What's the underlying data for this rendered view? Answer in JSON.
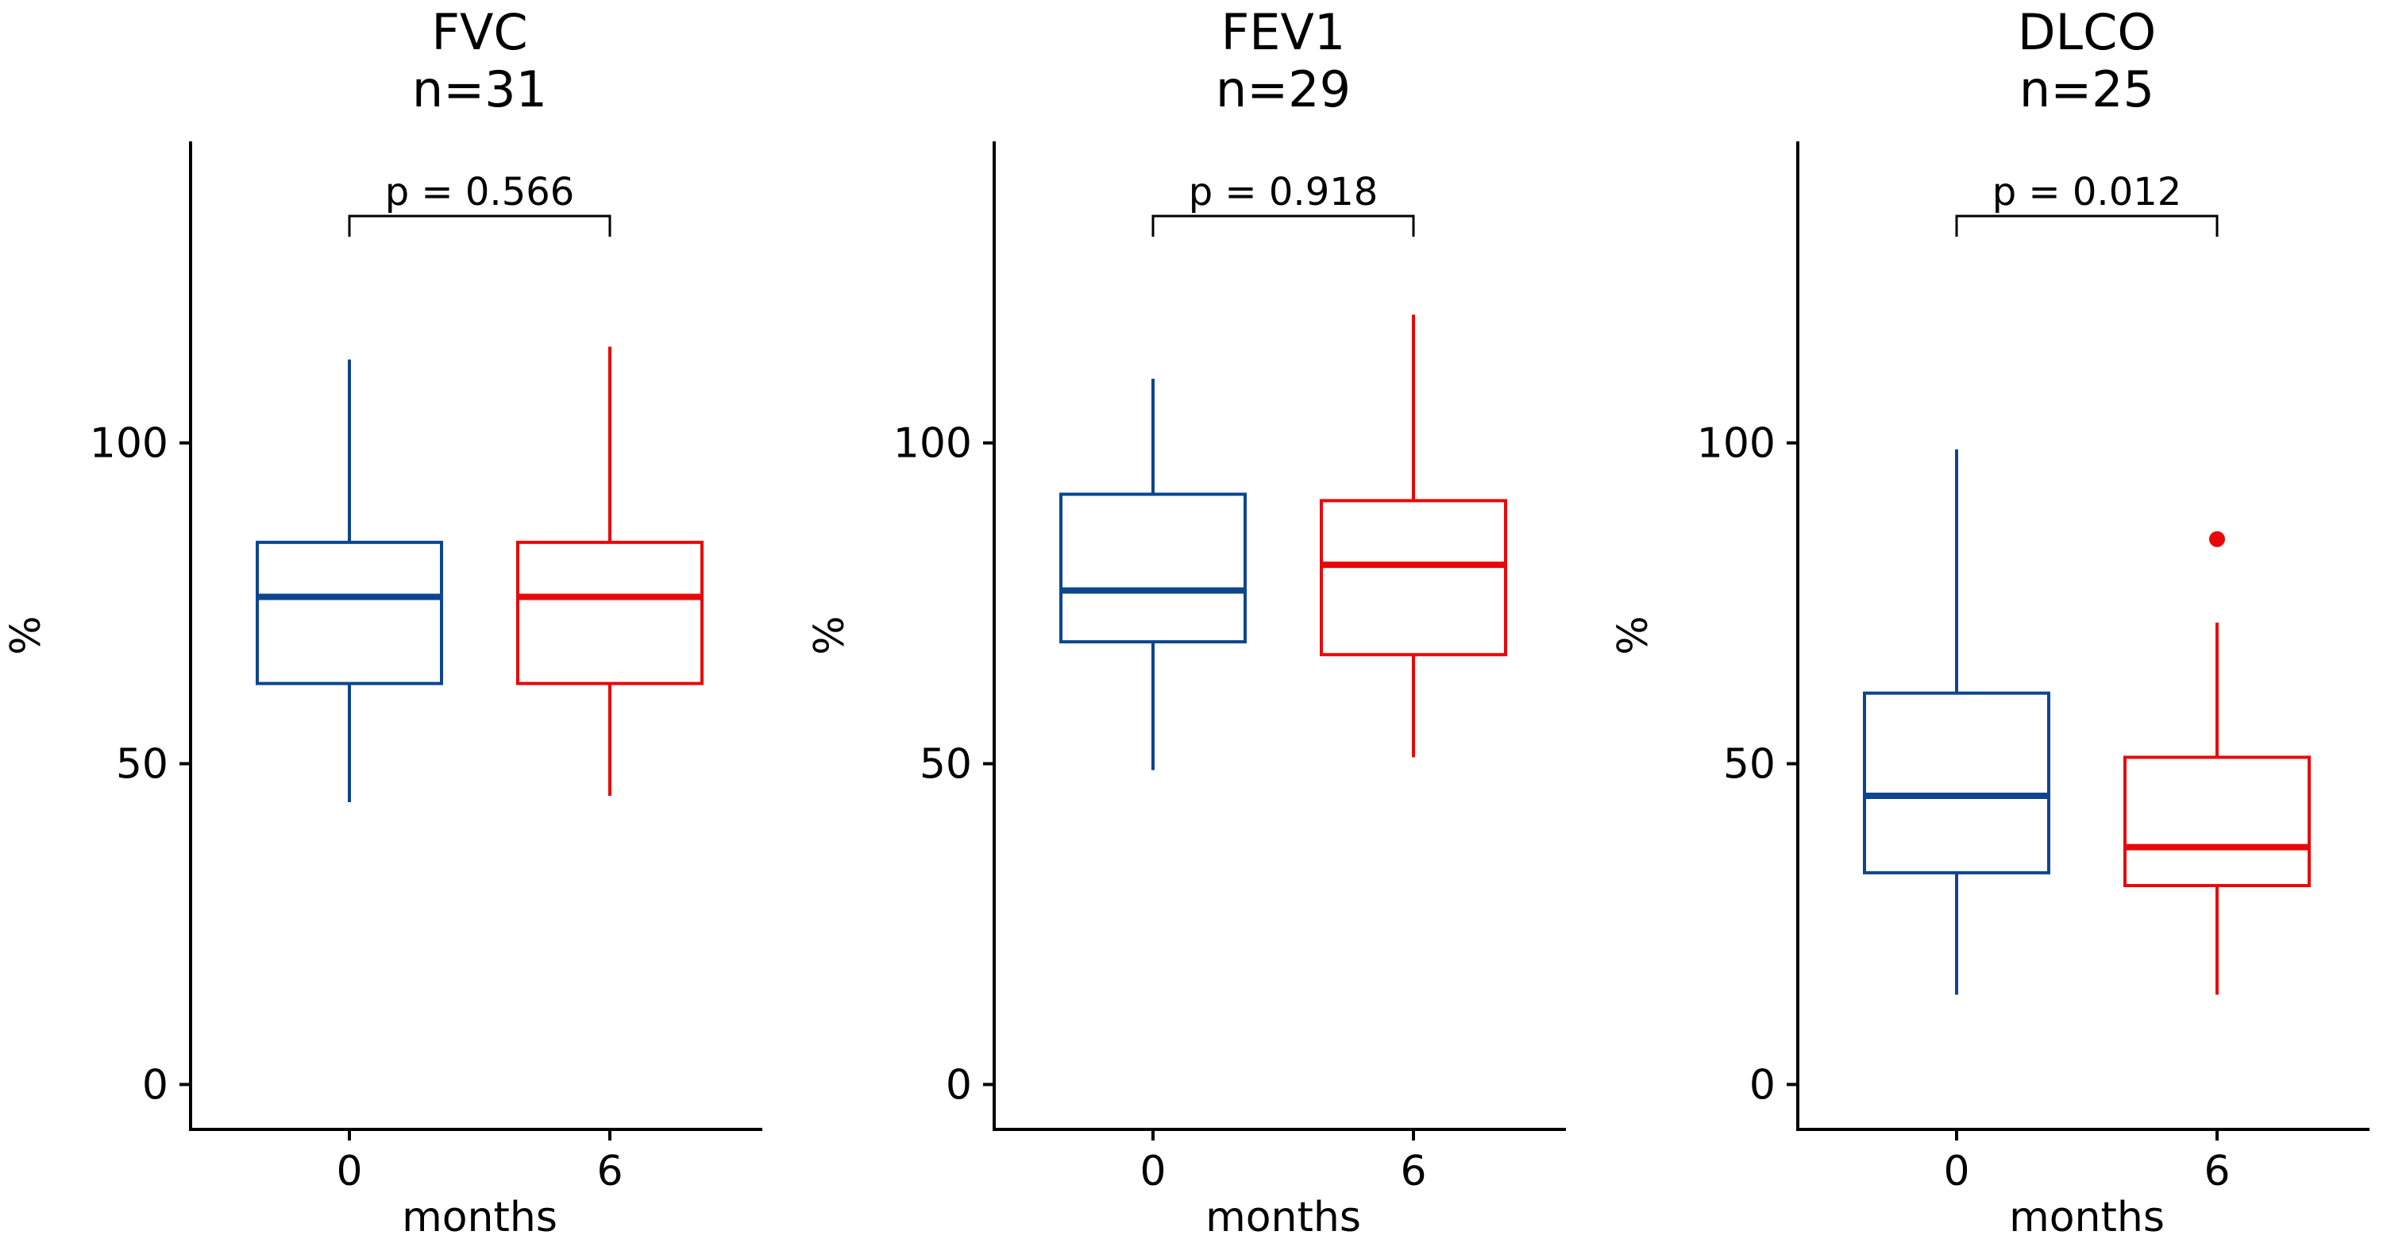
{
  "chart_data": [
    {
      "type": "boxplot",
      "title": "FVC",
      "subtitle": "n=31",
      "xlabel": "months",
      "ylabel": "%",
      "categories": [
        "0",
        "6"
      ],
      "ylim": [
        -7,
        147
      ],
      "yticks": [
        0,
        50,
        100
      ],
      "ytick_labels": [
        "0",
        "50",
        "100"
      ],
      "pvalue_label": "p = 0.566",
      "boxes": [
        {
          "category": "0",
          "color": "#0d4590",
          "whisker_low": 44,
          "q1": 62.5,
          "median": 76,
          "q3": 84.5,
          "whisker_high": 113,
          "outliers": []
        },
        {
          "category": "6",
          "color": "#e8080b",
          "whisker_low": 45,
          "q1": 62.5,
          "median": 76,
          "q3": 84.5,
          "whisker_high": 115,
          "outliers": []
        }
      ]
    },
    {
      "type": "boxplot",
      "title": "FEV1",
      "subtitle": "n=29",
      "xlabel": "months",
      "ylabel": "%",
      "categories": [
        "0",
        "6"
      ],
      "ylim": [
        -7,
        147
      ],
      "yticks": [
        0,
        50,
        100
      ],
      "ytick_labels": [
        "0",
        "50",
        "100"
      ],
      "pvalue_label": "p = 0.918",
      "boxes": [
        {
          "category": "0",
          "color": "#0d4590",
          "whisker_low": 49,
          "q1": 69,
          "median": 77,
          "q3": 92,
          "whisker_high": 110,
          "outliers": []
        },
        {
          "category": "6",
          "color": "#e8080b",
          "whisker_low": 51,
          "q1": 67,
          "median": 81,
          "q3": 91,
          "whisker_high": 120,
          "outliers": []
        }
      ]
    },
    {
      "type": "boxplot",
      "title": "DLCO",
      "subtitle": "n=25",
      "xlabel": "months",
      "ylabel": "%",
      "categories": [
        "0",
        "6"
      ],
      "ylim": [
        -7,
        147
      ],
      "yticks": [
        0,
        50,
        100
      ],
      "ytick_labels": [
        "0",
        "50",
        "100"
      ],
      "pvalue_label": "p = 0.012",
      "boxes": [
        {
          "category": "0",
          "color": "#0d4590",
          "whisker_low": 14,
          "q1": 33,
          "median": 45,
          "q3": 61,
          "whisker_high": 99,
          "outliers": []
        },
        {
          "category": "6",
          "color": "#e8080b",
          "whisker_low": 14,
          "q1": 31,
          "median": 37,
          "q3": 51,
          "whisker_high": 72,
          "outliers": [
            85
          ]
        }
      ]
    }
  ]
}
